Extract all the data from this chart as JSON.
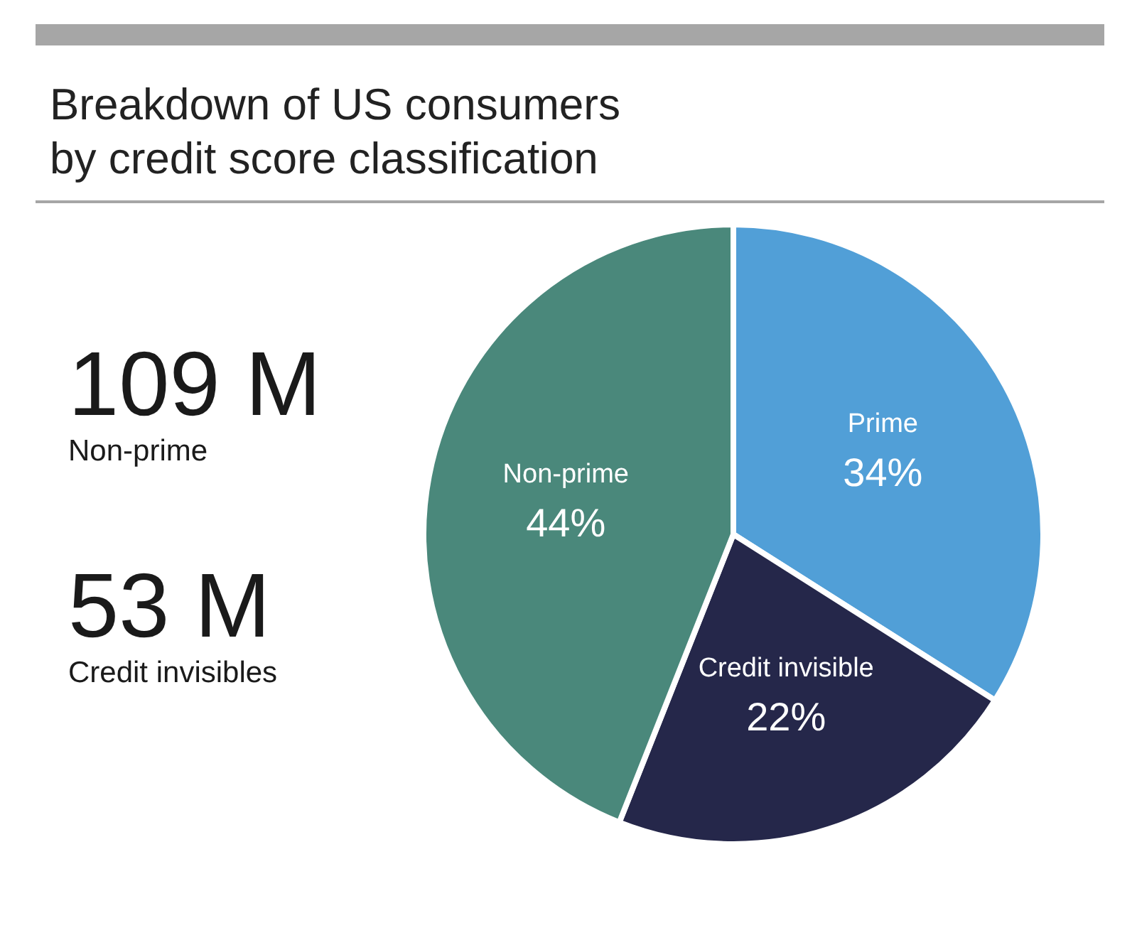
{
  "chart_data": {
    "type": "pie",
    "title": "Breakdown of US consumers by credit score classification",
    "categories": [
      "Prime",
      "Credit invisible",
      "Non-prime"
    ],
    "values": [
      34,
      22,
      44
    ],
    "value_labels": [
      "34%",
      "22%",
      "44%"
    ],
    "colors": [
      "#519fd7",
      "#25274a",
      "#4a887b"
    ],
    "annotations": [
      "109 M",
      "Non-prime",
      "53 M",
      "Credit invisibles"
    ],
    "legend": false
  }
}
